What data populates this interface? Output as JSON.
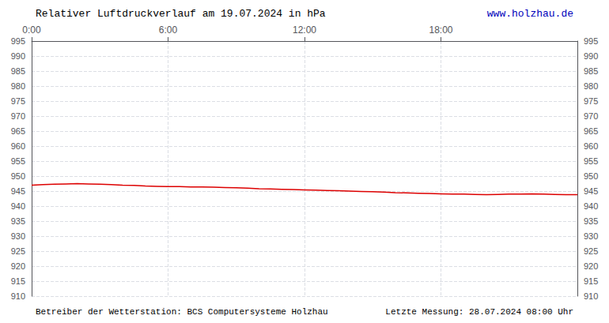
{
  "chart_data": {
    "type": "line",
    "title": "Relativer Luftdruckverlauf am 19.07.2024 in hPa",
    "annotations": [
      "www.holzhau.de",
      "Betreiber der Wetterstation: BCS Computersysteme Holzhau",
      "Letzte Messung: 28.07.2024 08:00 Uhr"
    ],
    "x": [
      0.0,
      0.5,
      1.0,
      1.5,
      2.0,
      2.5,
      3.0,
      3.5,
      4.0,
      4.5,
      5.0,
      5.5,
      6.0,
      6.5,
      7.0,
      7.5,
      8.0,
      8.5,
      9.0,
      9.5,
      10.0,
      10.5,
      11.0,
      11.5,
      12.0,
      12.5,
      13.0,
      13.5,
      14.0,
      14.5,
      15.0,
      15.5,
      16.0,
      16.5,
      17.0,
      17.5,
      18.0,
      18.5,
      19.0,
      19.5,
      20.0,
      20.5,
      21.0,
      21.5,
      22.0,
      22.5,
      23.0,
      23.5,
      24.0
    ],
    "values": [
      947.0,
      947.2,
      947.3,
      947.4,
      947.5,
      947.4,
      947.3,
      947.2,
      947.0,
      946.9,
      946.7,
      946.6,
      946.5,
      946.5,
      946.4,
      946.4,
      946.3,
      946.2,
      946.1,
      946.0,
      945.8,
      945.7,
      945.6,
      945.5,
      945.4,
      945.3,
      945.2,
      945.1,
      945.0,
      944.9,
      944.8,
      944.7,
      944.5,
      944.4,
      944.3,
      944.2,
      944.1,
      944.0,
      944.0,
      943.9,
      943.8,
      943.9,
      944.0,
      944.0,
      944.1,
      944.0,
      943.9,
      943.8,
      943.8
    ],
    "color": "#dd0000",
    "xlim": [
      0,
      24
    ],
    "xticks": [
      {
        "value": 0,
        "label": "0:00"
      },
      {
        "value": 6,
        "label": "6:00"
      },
      {
        "value": 12,
        "label": "12:00"
      },
      {
        "value": 18,
        "label": "18:00"
      }
    ],
    "ylim": [
      910,
      995
    ],
    "yticks": [
      910,
      915,
      920,
      925,
      930,
      935,
      940,
      945,
      950,
      955,
      960,
      965,
      970,
      975,
      980,
      985,
      990,
      995
    ],
    "y2lim": [
      910,
      995
    ],
    "y2ticks": [
      910,
      915,
      920,
      925,
      930,
      935,
      940,
      945,
      950,
      955,
      960,
      965,
      970,
      975,
      980,
      985,
      990,
      995
    ],
    "grid": true
  }
}
